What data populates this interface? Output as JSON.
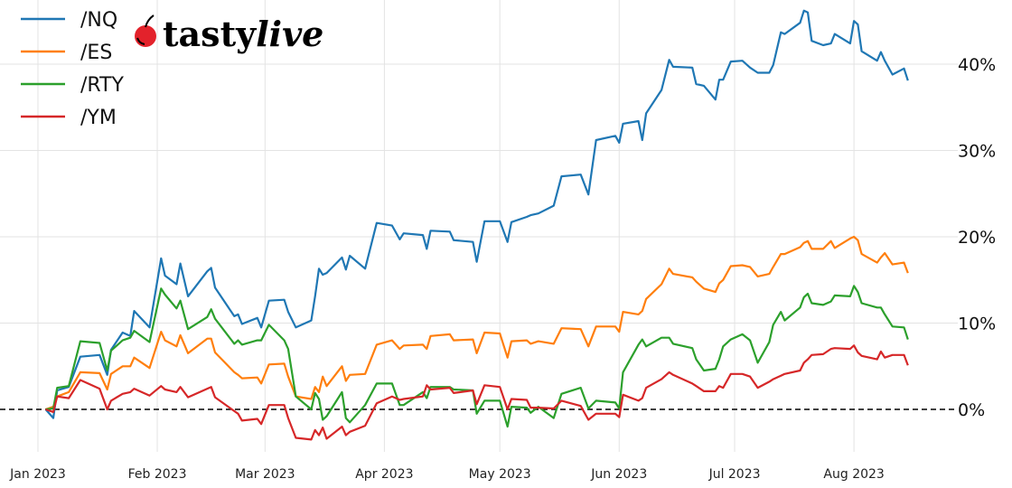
{
  "logo": {
    "text_a": "tasty",
    "text_b": "live",
    "cherry_color": "#e3222b"
  },
  "chart_data": {
    "type": "line",
    "title": "",
    "xlabel": "",
    "ylabel": "",
    "y_unit": "%",
    "ylim": [
      -5,
      47
    ],
    "xlim": [
      "2022-12-31",
      "2023-08-25"
    ],
    "grid": true,
    "legend_placement": "top-left",
    "y_axis_side": "right",
    "zero_line": {
      "value": 0,
      "style": "dashed",
      "color": "#000000"
    },
    "x_ticks": [
      {
        "date": "2023-01-01",
        "label": "Jan 2023"
      },
      {
        "date": "2023-02-01",
        "label": "Feb 2023"
      },
      {
        "date": "2023-03-01",
        "label": "Mar 2023"
      },
      {
        "date": "2023-04-01",
        "label": "Apr 2023"
      },
      {
        "date": "2023-05-01",
        "label": "May 2023"
      },
      {
        "date": "2023-06-01",
        "label": "Jun 2023"
      },
      {
        "date": "2023-07-01",
        "label": "Jul 2023"
      },
      {
        "date": "2023-08-01",
        "label": "Aug 2023"
      }
    ],
    "y_ticks": [
      {
        "value": 0,
        "label": "0%"
      },
      {
        "value": 10,
        "label": "10%"
      },
      {
        "value": 20,
        "label": "20%"
      },
      {
        "value": 30,
        "label": "30%"
      },
      {
        "value": 40,
        "label": "40%"
      }
    ],
    "x": [
      "2023-01-03",
      "2023-01-05",
      "2023-01-06",
      "2023-01-09",
      "2023-01-12",
      "2023-01-17",
      "2023-01-19",
      "2023-01-20",
      "2023-01-23",
      "2023-01-25",
      "2023-01-26",
      "2023-01-30",
      "2023-02-02",
      "2023-02-03",
      "2023-02-06",
      "2023-02-07",
      "2023-02-09",
      "2023-02-14",
      "2023-02-15",
      "2023-02-16",
      "2023-02-21",
      "2023-02-22",
      "2023-02-23",
      "2023-02-27",
      "2023-02-28",
      "2023-03-02",
      "2023-03-06",
      "2023-03-07",
      "2023-03-09",
      "2023-03-13",
      "2023-03-14",
      "2023-03-15",
      "2023-03-16",
      "2023-03-17",
      "2023-03-21",
      "2023-03-22",
      "2023-03-23",
      "2023-03-27",
      "2023-03-30",
      "2023-04-03",
      "2023-04-05",
      "2023-04-06",
      "2023-04-11",
      "2023-04-12",
      "2023-04-13",
      "2023-04-18",
      "2023-04-19",
      "2023-04-24",
      "2023-04-25",
      "2023-04-27",
      "2023-05-01",
      "2023-05-03",
      "2023-05-04",
      "2023-05-08",
      "2023-05-09",
      "2023-05-11",
      "2023-05-15",
      "2023-05-17",
      "2023-05-22",
      "2023-05-24",
      "2023-05-26",
      "2023-05-31",
      "2023-06-01",
      "2023-06-02",
      "2023-06-06",
      "2023-06-07",
      "2023-06-08",
      "2023-06-12",
      "2023-06-14",
      "2023-06-15",
      "2023-06-20",
      "2023-06-21",
      "2023-06-23",
      "2023-06-26",
      "2023-06-27",
      "2023-06-28",
      "2023-06-30",
      "2023-07-03",
      "2023-07-05",
      "2023-07-07",
      "2023-07-10",
      "2023-07-11",
      "2023-07-13",
      "2023-07-14",
      "2023-07-18",
      "2023-07-19",
      "2023-07-20",
      "2023-07-21",
      "2023-07-24",
      "2023-07-26",
      "2023-07-27",
      "2023-07-31",
      "2023-08-01",
      "2023-08-02",
      "2023-08-03",
      "2023-08-07",
      "2023-08-08",
      "2023-08-09",
      "2023-08-11",
      "2023-08-14",
      "2023-08-15"
    ],
    "series": [
      {
        "name": "/NQ",
        "color": "#1f77b4",
        "values": [
          0,
          -1,
          2.2,
          2.6,
          6.1,
          6.3,
          4,
          6.9,
          8.9,
          8.5,
          11.4,
          9.5,
          17.5,
          15.5,
          14.5,
          16.9,
          13.1,
          16,
          16.4,
          14.1,
          10.8,
          11,
          9.9,
          10.6,
          9.5,
          12.6,
          12.7,
          11.3,
          9.5,
          10.3,
          13.1,
          16.3,
          15.6,
          15.8,
          17.6,
          16.2,
          17.8,
          16.3,
          21.6,
          21.3,
          19.7,
          20.4,
          20.2,
          18.6,
          20.7,
          20.6,
          19.6,
          19.4,
          17.1,
          21.8,
          21.8,
          19.4,
          21.7,
          22.3,
          22.5,
          22.7,
          23.6,
          27,
          27.2,
          24.9,
          31.2,
          31.7,
          30.9,
          33.1,
          33.4,
          31.2,
          34.3,
          37,
          40.5,
          39.7,
          39.6,
          37.7,
          37.5,
          35.9,
          38.2,
          38.2,
          40.3,
          40.4,
          39.6,
          39,
          39,
          39.9,
          43.7,
          43.5,
          44.8,
          46.2,
          46,
          42.7,
          42.2,
          42.4,
          43.5,
          42.4,
          45,
          44.6,
          41.5,
          40.4,
          41.4,
          40.4,
          38.8,
          39.5,
          38.1
        ]
      },
      {
        "name": "/ES",
        "color": "#ff7f0e",
        "values": [
          0,
          0.3,
          1.5,
          2,
          4.3,
          4.2,
          2.3,
          4.1,
          5,
          5,
          6,
          4.8,
          9,
          8,
          7.3,
          8.6,
          6.5,
          8.2,
          8.2,
          6.6,
          4.3,
          4,
          3.6,
          3.7,
          3,
          5.2,
          5.3,
          3.8,
          1.5,
          1.2,
          2.6,
          2,
          3.8,
          2.7,
          5,
          3.3,
          4,
          4.1,
          7.5,
          8,
          7,
          7.4,
          7.5,
          7,
          8.5,
          8.7,
          8,
          8.1,
          6.5,
          8.9,
          8.8,
          6,
          7.9,
          8,
          7.6,
          7.9,
          7.6,
          9.4,
          9.3,
          7.3,
          9.6,
          9.6,
          9,
          11.3,
          11,
          11.4,
          12.8,
          14.5,
          16.3,
          15.7,
          15.3,
          14.8,
          14,
          13.6,
          14.6,
          15,
          16.6,
          16.7,
          16.5,
          15.4,
          15.7,
          16.5,
          18,
          18,
          18.8,
          19.3,
          19.5,
          18.6,
          18.6,
          19.5,
          18.7,
          19.8,
          20,
          19.6,
          18,
          17,
          17.6,
          18.1,
          16.8,
          17,
          15.8
        ]
      },
      {
        "name": "/RTY",
        "color": "#2ca02c",
        "values": [
          0,
          0.1,
          2.5,
          2.7,
          7.9,
          7.7,
          4.5,
          6.8,
          8,
          8.3,
          9.1,
          7.8,
          14,
          13.3,
          11.7,
          12.6,
          9.3,
          10.7,
          11.6,
          10.5,
          7.6,
          8,
          7.5,
          8,
          8,
          9.8,
          8,
          7,
          1.5,
          0,
          1.9,
          1.2,
          -1.2,
          -0.8,
          2,
          -1,
          -1.5,
          0.5,
          3,
          3,
          0.5,
          0.5,
          2,
          1.3,
          2.6,
          2.6,
          2.3,
          2.2,
          -0.5,
          1,
          1,
          -2,
          0.3,
          0.2,
          -0.4,
          0.3,
          -1,
          1.8,
          2.5,
          0.1,
          1,
          0.8,
          0.1,
          4.3,
          7.5,
          8.1,
          7.3,
          8.3,
          8.3,
          7.6,
          7.1,
          5.8,
          4.5,
          4.7,
          5.8,
          7.3,
          8.1,
          8.7,
          8,
          5.4,
          7.8,
          9.8,
          11.3,
          10.3,
          11.8,
          13,
          13.4,
          12.3,
          12.1,
          12.5,
          13.2,
          13.1,
          14.3,
          13.6,
          12.3,
          11.8,
          11.8,
          11,
          9.6,
          9.5,
          8.1
        ]
      },
      {
        "name": "/YM",
        "color": "#d62728",
        "values": [
          0,
          -0.3,
          1.5,
          1.3,
          3.4,
          2.4,
          0,
          1,
          1.8,
          2,
          2.4,
          1.6,
          2.7,
          2.3,
          2,
          2.6,
          1.4,
          2.4,
          2.6,
          1.4,
          -0.2,
          -0.5,
          -1.3,
          -1.1,
          -1.7,
          0.5,
          0.5,
          -1,
          -3.3,
          -3.5,
          -2.4,
          -3,
          -2.1,
          -3.4,
          -2,
          -3,
          -2.6,
          -1.9,
          0.7,
          1.5,
          1.1,
          1.2,
          1.5,
          2.8,
          2.3,
          2.5,
          1.9,
          2.2,
          0.6,
          2.8,
          2.6,
          0,
          1.2,
          1.1,
          0.2,
          0.2,
          0.1,
          1,
          0.4,
          -1.2,
          -0.5,
          -0.5,
          -0.9,
          1.7,
          1,
          1.3,
          2.5,
          3.5,
          4.3,
          4,
          3,
          2.7,
          2.1,
          2.1,
          2.7,
          2.5,
          4.1,
          4.1,
          3.8,
          2.5,
          3.2,
          3.5,
          3.9,
          4.1,
          4.5,
          5.4,
          5.8,
          6.3,
          6.4,
          7,
          7.1,
          7,
          7.4,
          6.6,
          6.2,
          5.8,
          6.7,
          6,
          6.3,
          6.3,
          5.1
        ]
      }
    ]
  }
}
